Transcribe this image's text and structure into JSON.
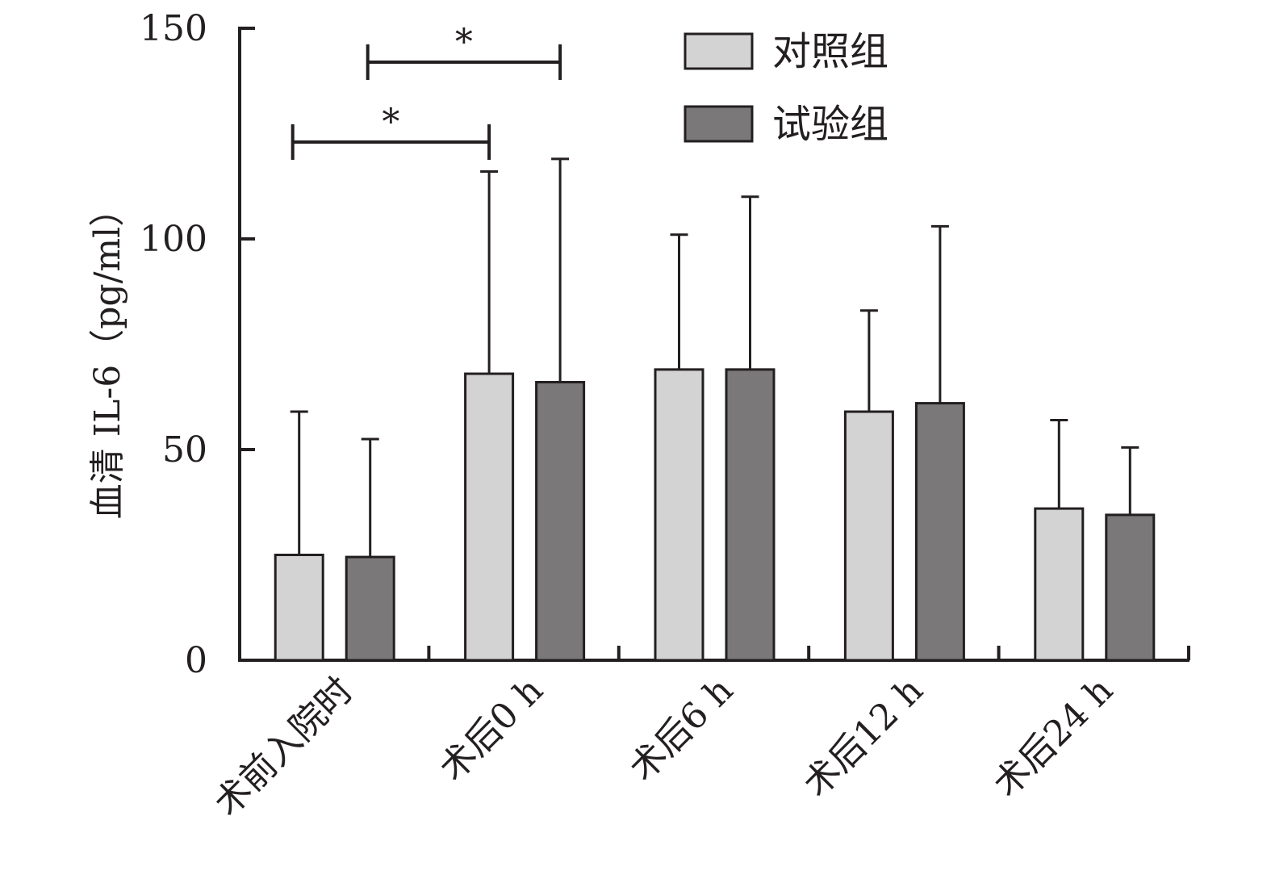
{
  "chart_data": {
    "type": "bar",
    "ylabel": "血清 IL-6（pg/ml）",
    "xlabel": "",
    "ylim": [
      0,
      150
    ],
    "yticks": [
      0,
      50,
      100,
      150
    ],
    "categories": [
      "术前入院时",
      "术后0 h",
      "术后6 h",
      "术后12 h",
      "术后24 h"
    ],
    "series": [
      {
        "name": "对照组",
        "color": "#d3d3d3",
        "values": [
          25,
          68,
          69,
          59,
          36
        ],
        "errors": [
          34,
          48,
          32,
          24,
          21
        ]
      },
      {
        "name": "试验组",
        "color": "#7a7879",
        "values": [
          24.5,
          66,
          69,
          61,
          34.5
        ],
        "errors": [
          28,
          53,
          41,
          42,
          16
        ]
      }
    ],
    "significance": [
      {
        "label": "*",
        "from": "对照组 · 术前入院时",
        "to": "对照组 · 术后0 h"
      },
      {
        "label": "*",
        "from": "试验组 · 术前入院时",
        "to": "试验组 · 术后0 h"
      }
    ],
    "legend_position": "top-right",
    "grid": false,
    "colors": {
      "axis": "#231f20",
      "text": "#231f20",
      "bar_stroke": "#231f20"
    }
  }
}
